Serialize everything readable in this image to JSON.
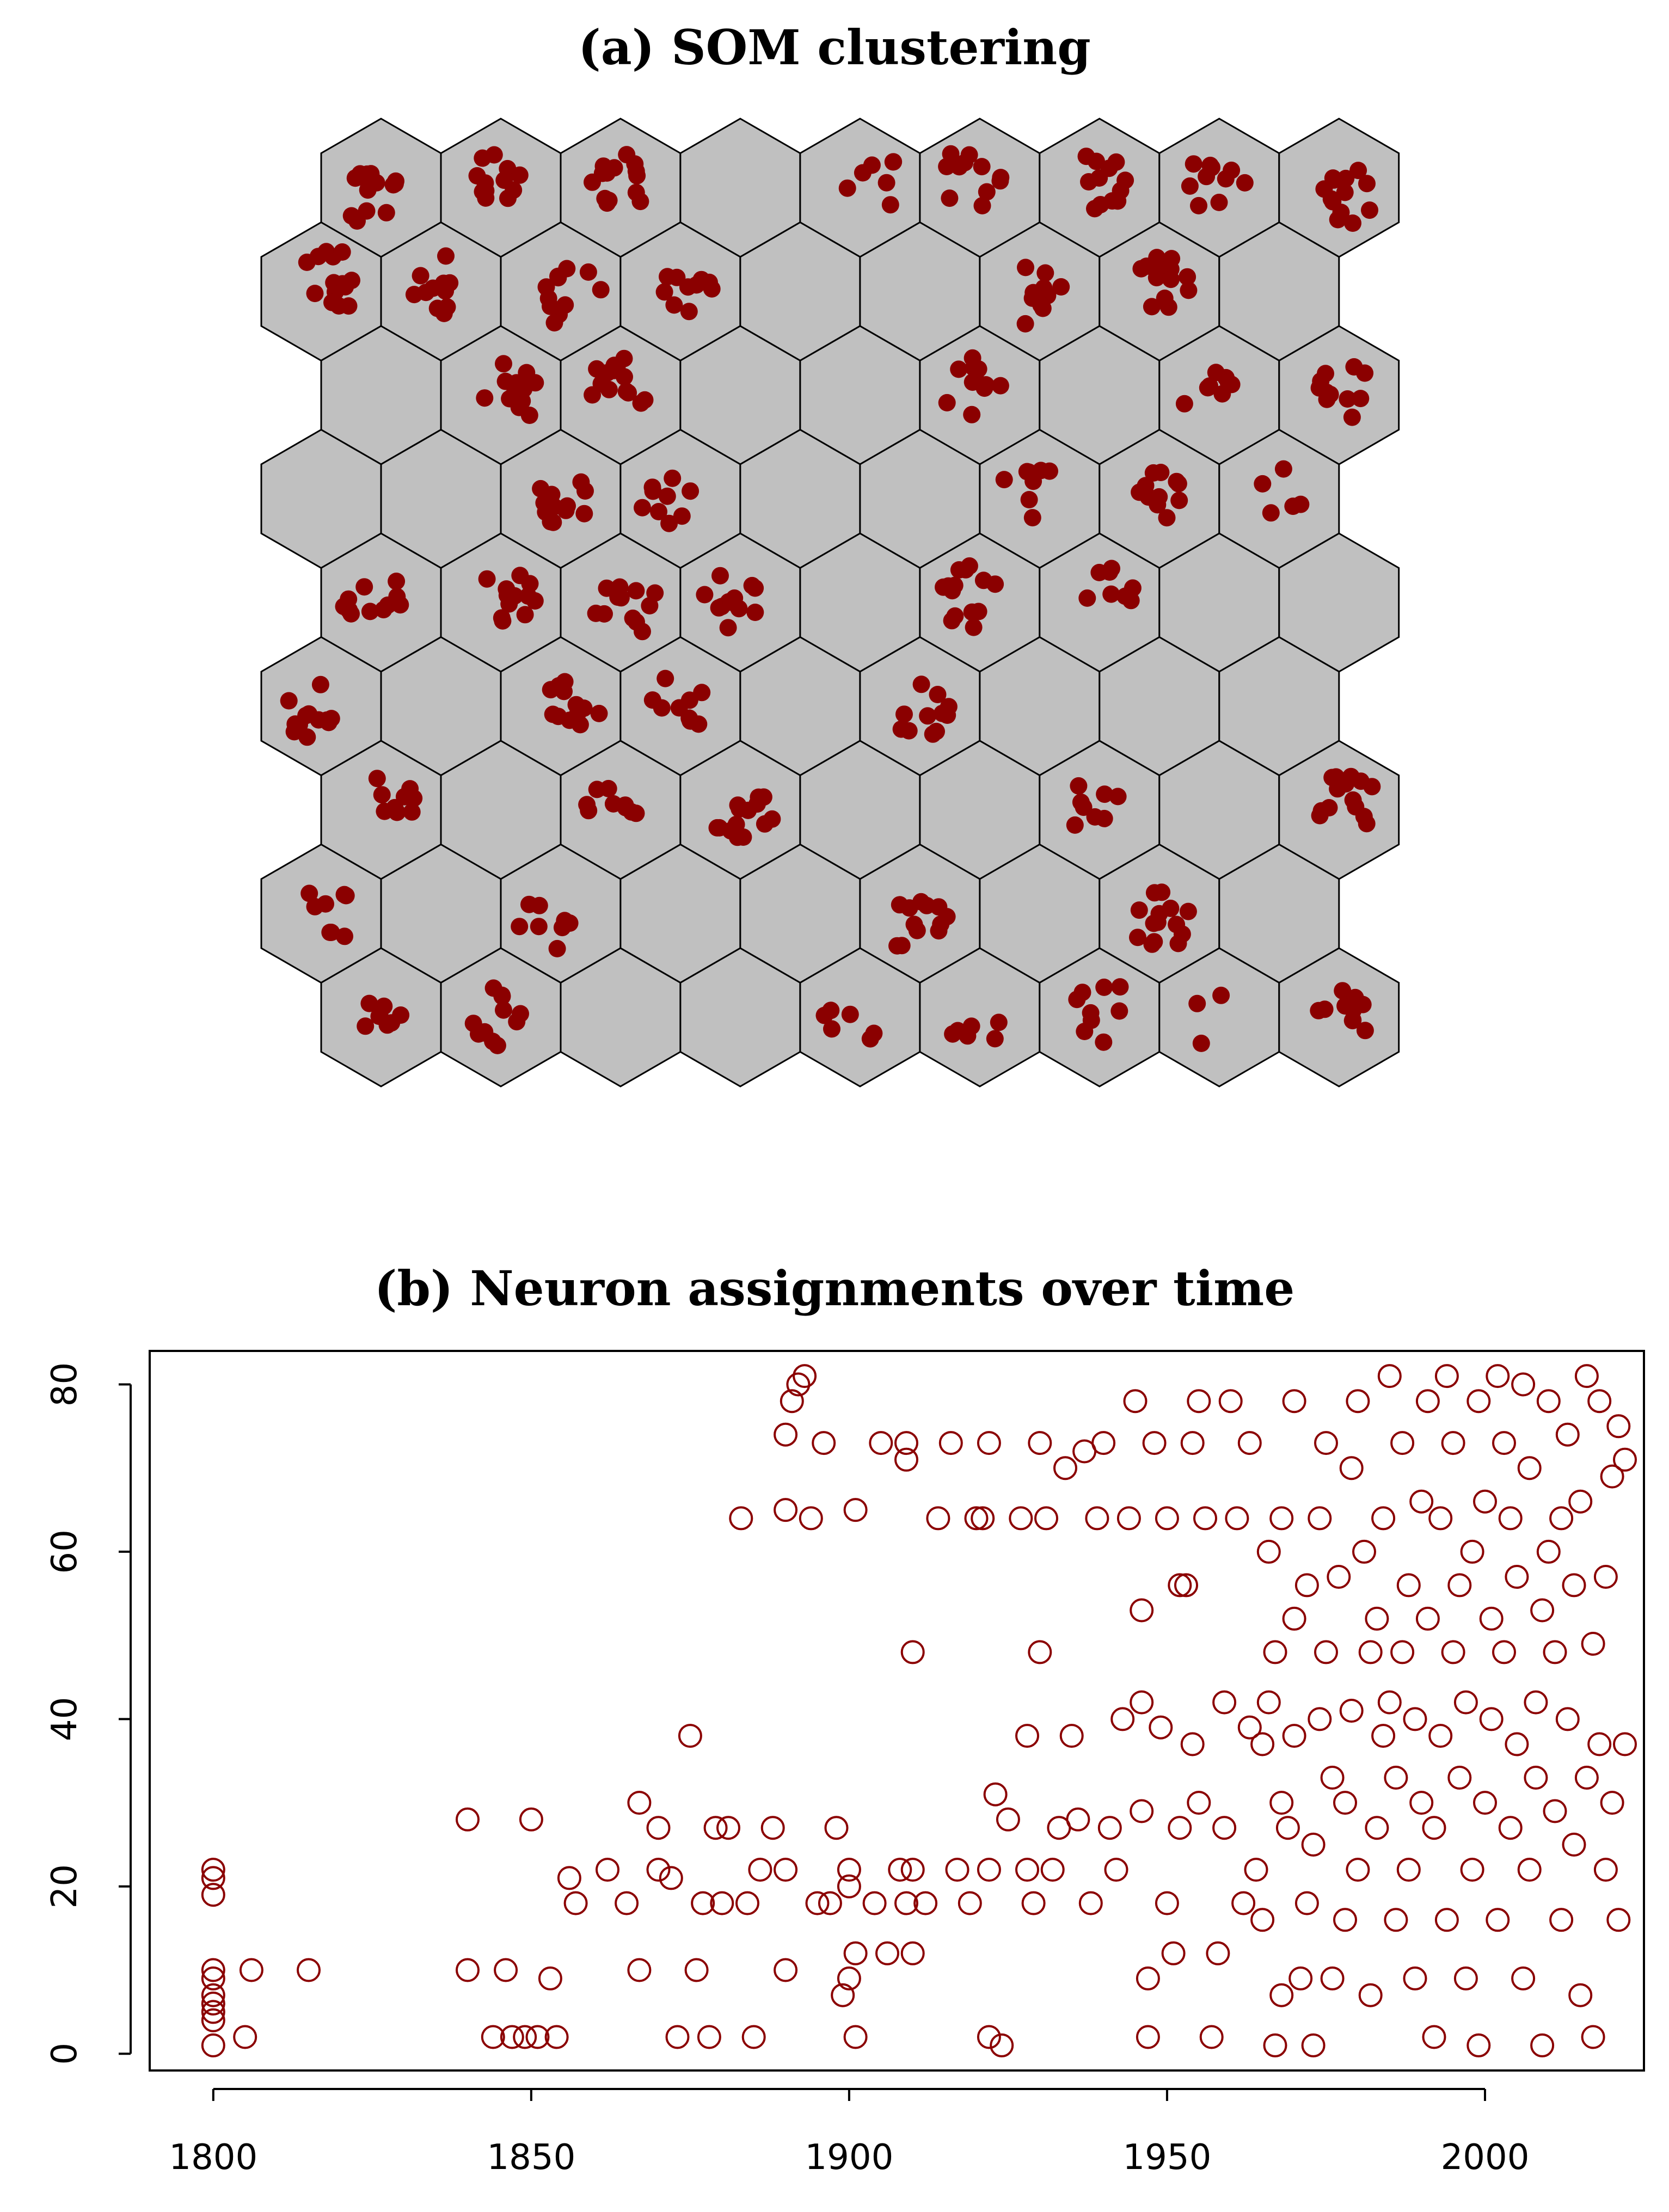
{
  "colors": {
    "marker": "#8b0000",
    "cell_fill": "#c0c0c0",
    "cell_stroke": "#000000",
    "axis": "#000000"
  },
  "chart_data": [
    {
      "type": "hexmap",
      "title": "(a) SOM clustering",
      "grid": {
        "columns": 9,
        "rows": 9,
        "offset_rows": "odd rows shifted left"
      },
      "rows": [
        [
          14,
          12,
          14,
          0,
          7,
          11,
          12,
          10,
          13
        ],
        [
          15,
          11,
          11,
          10,
          0,
          0,
          10,
          13,
          0
        ],
        [
          0,
          12,
          14,
          0,
          0,
          11,
          0,
          8,
          11
        ],
        [
          0,
          0,
          13,
          9,
          0,
          0,
          8,
          11,
          5
        ],
        [
          12,
          12,
          12,
          12,
          0,
          14,
          8,
          0,
          0
        ],
        [
          12,
          0,
          12,
          10,
          0,
          12,
          0,
          0,
          0
        ],
        [
          9,
          0,
          9,
          14,
          0,
          0,
          8,
          0,
          14
        ],
        [
          8,
          0,
          8,
          0,
          0,
          12,
          0,
          14,
          0
        ],
        [
          8,
          12,
          0,
          0,
          6,
          6,
          9,
          3,
          10
        ]
      ]
    },
    {
      "type": "scatter",
      "title": "(b) Neuron assignments over time",
      "xlim": [
        1790,
        2025
      ],
      "ylim": [
        -2,
        84
      ],
      "xticks": [
        1800,
        1850,
        1900,
        1950,
        2000
      ],
      "yticks": [
        0,
        20,
        40,
        60,
        80
      ],
      "series": [
        {
          "points": [
            [
              1800,
              1
            ],
            [
              1800,
              4
            ],
            [
              1800,
              5
            ],
            [
              1800,
              6
            ],
            [
              1800,
              7
            ],
            [
              1800,
              9
            ],
            [
              1800,
              10
            ],
            [
              1800,
              19
            ],
            [
              1800,
              21
            ],
            [
              1800,
              22
            ],
            [
              1805,
              2
            ],
            [
              1806,
              10
            ],
            [
              1815,
              10
            ],
            [
              1840,
              10
            ],
            [
              1840,
              28
            ],
            [
              1844,
              2
            ],
            [
              1846,
              10
            ],
            [
              1847,
              2
            ],
            [
              1849,
              2
            ],
            [
              1850,
              28
            ],
            [
              1851,
              2
            ],
            [
              1853,
              9
            ],
            [
              1854,
              2
            ],
            [
              1856,
              21
            ],
            [
              1857,
              18
            ],
            [
              1862,
              22
            ],
            [
              1865,
              18
            ],
            [
              1867,
              10
            ],
            [
              1867,
              30
            ],
            [
              1870,
              27
            ],
            [
              1870,
              22
            ],
            [
              1872,
              21
            ],
            [
              1873,
              2
            ],
            [
              1875,
              38
            ],
            [
              1876,
              10
            ],
            [
              1877,
              18
            ],
            [
              1878,
              2
            ],
            [
              1879,
              27
            ],
            [
              1880,
              18
            ],
            [
              1881,
              27
            ],
            [
              1883,
              64
            ],
            [
              1884,
              18
            ],
            [
              1885,
              2
            ],
            [
              1886,
              22
            ],
            [
              1888,
              27
            ],
            [
              1890,
              10
            ],
            [
              1890,
              22
            ],
            [
              1890,
              74
            ],
            [
              1890,
              65
            ],
            [
              1891,
              78
            ],
            [
              1892,
              80
            ],
            [
              1893,
              81
            ],
            [
              1894,
              64
            ],
            [
              1895,
              18
            ],
            [
              1896,
              73
            ],
            [
              1897,
              18
            ],
            [
              1898,
              27
            ],
            [
              1899,
              7
            ],
            [
              1900,
              9
            ],
            [
              1900,
              20
            ],
            [
              1900,
              22
            ],
            [
              1901,
              2
            ],
            [
              1901,
              12
            ],
            [
              1901,
              65
            ],
            [
              1904,
              18
            ],
            [
              1905,
              73
            ],
            [
              1906,
              12
            ],
            [
              1908,
              22
            ],
            [
              1909,
              18
            ],
            [
              1909,
              71
            ],
            [
              1909,
              73
            ],
            [
              1910,
              12
            ],
            [
              1910,
              22
            ],
            [
              1910,
              48
            ],
            [
              1912,
              18
            ],
            [
              1914,
              64
            ],
            [
              1916,
              73
            ],
            [
              1917,
              22
            ],
            [
              1919,
              18
            ],
            [
              1920,
              64
            ],
            [
              1921,
              64
            ],
            [
              1922,
              73
            ],
            [
              1922,
              22
            ],
            [
              1922,
              2
            ],
            [
              1923,
              31
            ],
            [
              1924,
              1
            ],
            [
              1925,
              28
            ],
            [
              1927,
              64
            ],
            [
              1928,
              38
            ],
            [
              1928,
              22
            ],
            [
              1929,
              18
            ],
            [
              1930,
              48
            ],
            [
              1930,
              73
            ],
            [
              1931,
              64
            ],
            [
              1932,
              22
            ],
            [
              1933,
              27
            ],
            [
              1934,
              70
            ],
            [
              1935,
              38
            ],
            [
              1936,
              28
            ],
            [
              1937,
              72
            ],
            [
              1938,
              18
            ],
            [
              1939,
              64
            ],
            [
              1940,
              73
            ],
            [
              1941,
              27
            ],
            [
              1942,
              22
            ],
            [
              1943,
              40
            ],
            [
              1944,
              64
            ],
            [
              1945,
              78
            ],
            [
              1946,
              29
            ],
            [
              1946,
              42
            ],
            [
              1946,
              53
            ],
            [
              1947,
              9
            ],
            [
              1947,
              2
            ],
            [
              1948,
              73
            ],
            [
              1949,
              39
            ],
            [
              1950,
              18
            ],
            [
              1950,
              64
            ],
            [
              1951,
              12
            ],
            [
              1952,
              27
            ],
            [
              1952,
              56
            ],
            [
              1953,
              56
            ],
            [
              1954,
              37
            ],
            [
              1954,
              73
            ],
            [
              1955,
              30
            ],
            [
              1955,
              78
            ],
            [
              1956,
              64
            ],
            [
              1957,
              2
            ],
            [
              1958,
              12
            ],
            [
              1959,
              42
            ],
            [
              1959,
              27
            ],
            [
              1960,
              78
            ],
            [
              1961,
              64
            ],
            [
              1962,
              18
            ],
            [
              1963,
              39
            ],
            [
              1963,
              73
            ],
            [
              1964,
              22
            ],
            [
              1965,
              37
            ],
            [
              1965,
              16
            ],
            [
              1966,
              42
            ],
            [
              1966,
              60
            ],
            [
              1967,
              1
            ],
            [
              1967,
              48
            ],
            [
              1968,
              64
            ],
            [
              1968,
              30
            ],
            [
              1968,
              7
            ],
            [
              1969,
              27
            ],
            [
              1970,
              78
            ],
            [
              1970,
              52
            ],
            [
              1970,
              38
            ],
            [
              1971,
              9
            ],
            [
              1972,
              56
            ],
            [
              1972,
              18
            ],
            [
              1973,
              1
            ],
            [
              1973,
              25
            ],
            [
              1974,
              64
            ],
            [
              1974,
              40
            ],
            [
              1975,
              73
            ],
            [
              1975,
              48
            ],
            [
              1976,
              33
            ],
            [
              1976,
              9
            ],
            [
              1977,
              57
            ],
            [
              1978,
              30
            ],
            [
              1978,
              16
            ],
            [
              1979,
              70
            ],
            [
              1979,
              41
            ],
            [
              1980,
              22
            ],
            [
              1980,
              78
            ],
            [
              1981,
              60
            ],
            [
              1982,
              48
            ],
            [
              1982,
              7
            ],
            [
              1983,
              52
            ],
            [
              1983,
              27
            ],
            [
              1984,
              38
            ],
            [
              1984,
              64
            ],
            [
              1985,
              81
            ],
            [
              1985,
              42
            ],
            [
              1986,
              33
            ],
            [
              1986,
              16
            ],
            [
              1987,
              73
            ],
            [
              1987,
              48
            ],
            [
              1988,
              56
            ],
            [
              1988,
              22
            ],
            [
              1989,
              9
            ],
            [
              1989,
              40
            ],
            [
              1990,
              66
            ],
            [
              1990,
              30
            ],
            [
              1991,
              78
            ],
            [
              1991,
              52
            ],
            [
              1992,
              27
            ],
            [
              1992,
              2
            ],
            [
              1993,
              64
            ],
            [
              1993,
              38
            ],
            [
              1994,
              81
            ],
            [
              1994,
              16
            ],
            [
              1995,
              48
            ],
            [
              1995,
              73
            ],
            [
              1996,
              56
            ],
            [
              1996,
              33
            ],
            [
              1997,
              42
            ],
            [
              1997,
              9
            ],
            [
              1998,
              60
            ],
            [
              1998,
              22
            ],
            [
              1999,
              78
            ],
            [
              1999,
              1
            ],
            [
              2000,
              66
            ],
            [
              2000,
              30
            ],
            [
              2001,
              52
            ],
            [
              2001,
              40
            ],
            [
              2002,
              81
            ],
            [
              2002,
              16
            ],
            [
              2003,
              73
            ],
            [
              2003,
              48
            ],
            [
              2004,
              27
            ],
            [
              2004,
              64
            ],
            [
              2005,
              37
            ],
            [
              2005,
              57
            ],
            [
              2006,
              80
            ],
            [
              2006,
              9
            ],
            [
              2007,
              22
            ],
            [
              2007,
              70
            ],
            [
              2008,
              42
            ],
            [
              2008,
              33
            ],
            [
              2009,
              53
            ],
            [
              2009,
              1
            ],
            [
              2010,
              78
            ],
            [
              2010,
              60
            ],
            [
              2011,
              29
            ],
            [
              2011,
              48
            ],
            [
              2012,
              64
            ],
            [
              2012,
              16
            ],
            [
              2013,
              40
            ],
            [
              2013,
              74
            ],
            [
              2014,
              56
            ],
            [
              2014,
              25
            ],
            [
              2015,
              66
            ],
            [
              2015,
              7
            ],
            [
              2016,
              81
            ],
            [
              2016,
              33
            ],
            [
              2017,
              49
            ],
            [
              2017,
              2
            ],
            [
              2018,
              37
            ],
            [
              2018,
              78
            ],
            [
              2019,
              22
            ],
            [
              2019,
              57
            ],
            [
              2020,
              30
            ],
            [
              2020,
              69
            ],
            [
              2021,
              16
            ],
            [
              2021,
              75
            ],
            [
              2022,
              37
            ],
            [
              2022,
              71
            ]
          ]
        }
      ]
    }
  ]
}
